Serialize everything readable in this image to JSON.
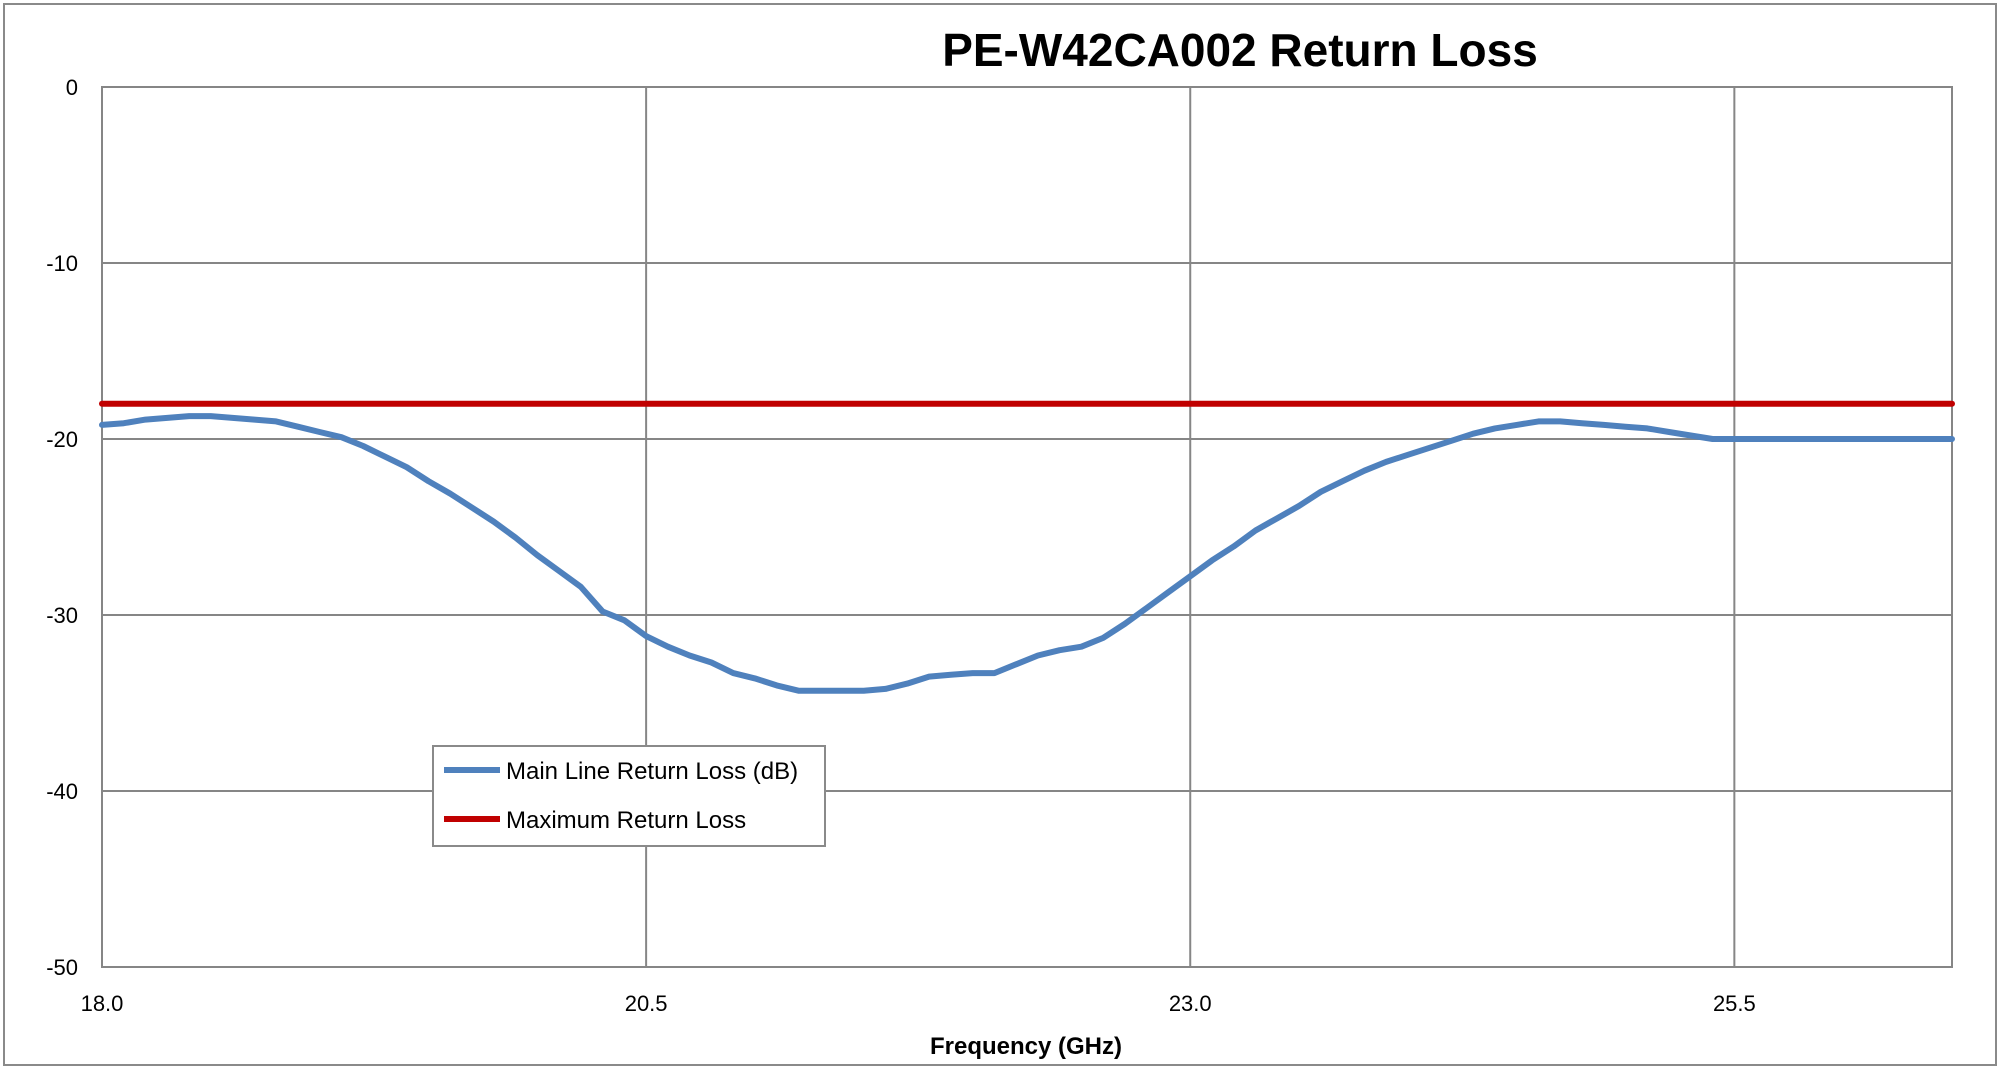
{
  "chart_data": {
    "type": "line",
    "title": "PE-W42CA002 Return Loss",
    "xlabel": "Frequency (GHz)",
    "ylabel": "",
    "xlim": [
      18.0,
      26.5
    ],
    "ylim": [
      -50,
      0
    ],
    "x_ticks": [
      18.0,
      20.5,
      23.0,
      25.5
    ],
    "x_tick_labels": [
      "18.0",
      "20.5",
      "23.0",
      "25.5"
    ],
    "y_ticks": [
      0,
      -10,
      -20,
      -30,
      -40,
      -50
    ],
    "y_tick_labels": [
      "0",
      "-10",
      "-20",
      "-30",
      "-40",
      "-50"
    ],
    "grid": true,
    "legend_position": "bottom-left",
    "series": [
      {
        "name": "Main Line Return Loss (dB)",
        "color": "#4F81BD",
        "x": [
          18.0,
          18.1,
          18.2,
          18.3,
          18.4,
          18.5,
          18.6,
          18.7,
          18.8,
          18.9,
          19.0,
          19.1,
          19.2,
          19.3,
          19.4,
          19.5,
          19.6,
          19.7,
          19.8,
          19.9,
          20.0,
          20.1,
          20.2,
          20.3,
          20.4,
          20.5,
          20.6,
          20.7,
          20.8,
          20.9,
          21.0,
          21.1,
          21.2,
          21.3,
          21.4,
          21.5,
          21.6,
          21.7,
          21.8,
          21.9,
          22.0,
          22.1,
          22.2,
          22.3,
          22.4,
          22.5,
          22.6,
          22.7,
          22.8,
          22.9,
          23.0,
          23.1,
          23.2,
          23.3,
          23.4,
          23.5,
          23.6,
          23.7,
          23.8,
          23.9,
          24.0,
          24.1,
          24.2,
          24.3,
          24.4,
          24.5,
          24.6,
          24.7,
          24.8,
          24.9,
          25.0,
          25.1,
          25.2,
          25.3,
          25.4,
          25.5,
          25.6,
          25.7,
          25.8,
          25.9,
          26.0,
          26.1,
          26.2,
          26.3,
          26.4,
          26.5
        ],
        "values": [
          -19.2,
          -19.1,
          -18.9,
          -18.8,
          -18.7,
          -18.7,
          -18.8,
          -18.9,
          -19.0,
          -19.3,
          -19.6,
          -19.9,
          -20.4,
          -21.0,
          -21.6,
          -22.4,
          -23.1,
          -23.9,
          -24.7,
          -25.6,
          -26.6,
          -27.5,
          -28.4,
          -29.8,
          -30.3,
          -31.2,
          -31.8,
          -32.3,
          -32.7,
          -33.3,
          -33.6,
          -34.0,
          -34.3,
          -34.3,
          -34.3,
          -34.3,
          -34.2,
          -33.9,
          -33.5,
          -33.4,
          -33.3,
          -33.3,
          -32.8,
          -32.3,
          -32.0,
          -31.8,
          -31.3,
          -30.5,
          -29.6,
          -28.7,
          -27.8,
          -26.9,
          -26.1,
          -25.2,
          -24.5,
          -23.8,
          -23.0,
          -22.4,
          -21.8,
          -21.3,
          -20.9,
          -20.5,
          -20.1,
          -19.7,
          -19.4,
          -19.2,
          -19.0,
          -19.0,
          -19.1,
          -19.2,
          -19.3,
          -19.4,
          -19.6,
          -19.8,
          -20.0,
          -20.0,
          -20.0,
          -20.0,
          -20.0,
          -20.0,
          -20.0,
          -20.0,
          -20.0,
          -20.0,
          -20.0,
          -20.0
        ]
      },
      {
        "name": "Maximum Return Loss",
        "color": "#C00000",
        "x": [
          18.0,
          26.5
        ],
        "values": [
          -18,
          -18
        ]
      }
    ]
  }
}
